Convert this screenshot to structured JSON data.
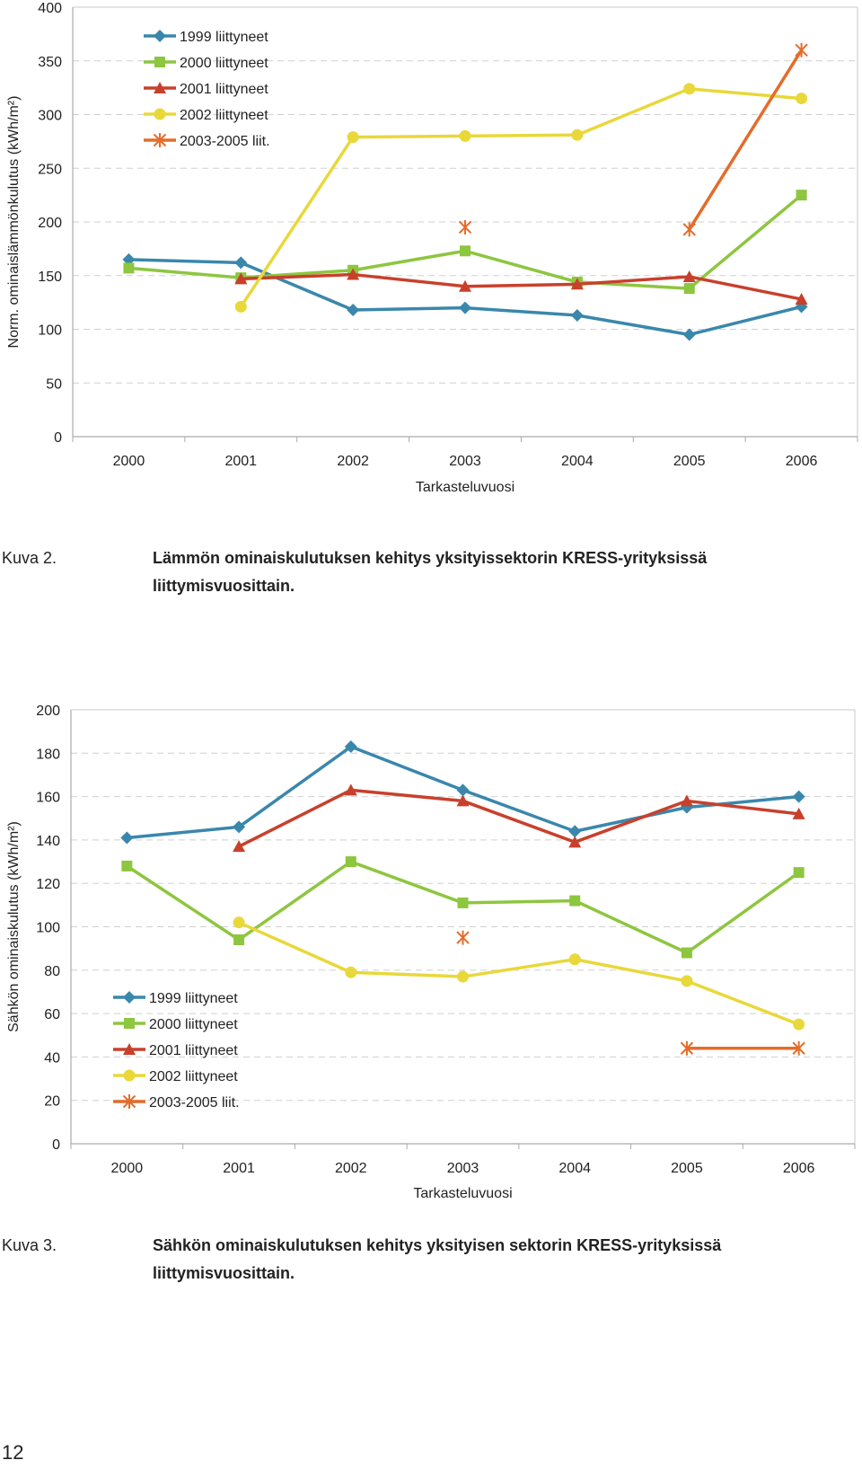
{
  "chart_data": [
    {
      "type": "line",
      "xlabel": "Tarkasteluvuosi",
      "ylabel": "Norm. ominaislämmönkulutus (kWh/m²)",
      "categories": [
        "2000",
        "2001",
        "2002",
        "2003",
        "2004",
        "2005",
        "2006"
      ],
      "ylim": [
        0,
        400
      ],
      "yticks": [
        0,
        50,
        100,
        150,
        200,
        250,
        300,
        350,
        400
      ],
      "grid": true,
      "legend_position": "top-left",
      "series": [
        {
          "name": "1999 liittyneet",
          "color": "#3a87ac",
          "marker": "diamond",
          "values": [
            165,
            162,
            118,
            120,
            113,
            95,
            121
          ]
        },
        {
          "name": "2000 liittyneet",
          "color": "#8dc63f",
          "marker": "square",
          "values": [
            157,
            148,
            155,
            173,
            144,
            138,
            225
          ]
        },
        {
          "name": "2001 liittyneet",
          "color": "#c8402c",
          "marker": "triangle",
          "values": [
            null,
            147,
            151,
            140,
            142,
            149,
            128
          ]
        },
        {
          "name": "2002 liittyneet",
          "color": "#e8d83a",
          "marker": "circle",
          "values": [
            null,
            121,
            279,
            280,
            281,
            324,
            315
          ]
        },
        {
          "name": "2003-2005 liit.",
          "color": "#e46c2a",
          "marker": "star",
          "values": [
            null,
            null,
            null,
            195,
            null,
            193,
            360
          ],
          "segments": [
            [
              5,
              6
            ]
          ]
        }
      ]
    },
    {
      "type": "line",
      "xlabel": "Tarkasteluvuosi",
      "ylabel": "Sähkön ominaiskulutus (kWh/m²)",
      "categories": [
        "2000",
        "2001",
        "2002",
        "2003",
        "2004",
        "2005",
        "2006"
      ],
      "ylim": [
        0,
        200
      ],
      "yticks": [
        0,
        20,
        40,
        60,
        80,
        100,
        120,
        140,
        160,
        180,
        200
      ],
      "grid": true,
      "legend_position": "bottom-left",
      "series": [
        {
          "name": "1999 liittyneet",
          "color": "#3a87ac",
          "marker": "diamond",
          "values": [
            141,
            146,
            183,
            163,
            144,
            155,
            160
          ]
        },
        {
          "name": "2000 liittyneet",
          "color": "#8dc63f",
          "marker": "square",
          "values": [
            128,
            94,
            130,
            111,
            112,
            88,
            125
          ]
        },
        {
          "name": "2001 liittyneet",
          "color": "#c8402c",
          "marker": "triangle",
          "values": [
            null,
            137,
            163,
            158,
            139,
            158,
            152
          ]
        },
        {
          "name": "2002 liittyneet",
          "color": "#e8d83a",
          "marker": "circle",
          "values": [
            null,
            102,
            79,
            77,
            85,
            75,
            55
          ]
        },
        {
          "name": "2003-2005 liit.",
          "color": "#e46c2a",
          "marker": "star",
          "values": [
            null,
            null,
            null,
            95,
            null,
            44,
            44
          ],
          "segments": [
            [
              5,
              6
            ]
          ]
        }
      ]
    }
  ],
  "captions": [
    {
      "label": "Kuva 2.",
      "text": "Lämmön ominaiskulutuksen kehitys yksityissektorin KRESS-yrityksissä liittymisvuosittain."
    },
    {
      "label": "Kuva 3.",
      "text": "Sähkön ominaiskulutuksen kehitys yksityisen sektorin KRESS-yrityksissä liittymisvuosittain."
    }
  ],
  "page_number": "12"
}
